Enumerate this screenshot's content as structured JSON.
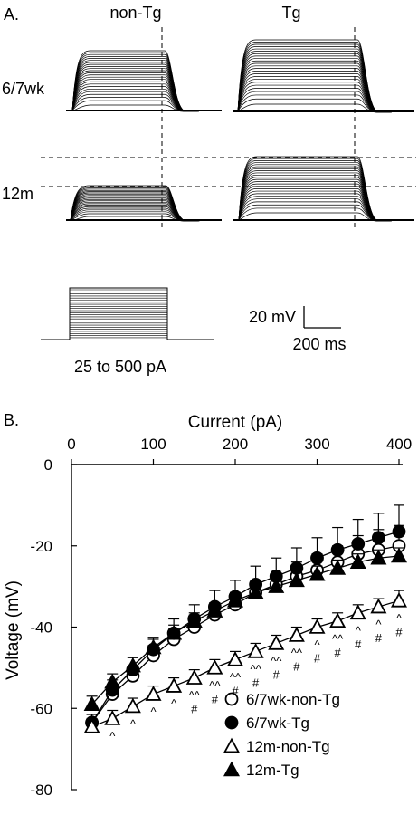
{
  "panel_a": {
    "label": "A.",
    "col_labels": [
      "non-Tg",
      "Tg"
    ],
    "row_labels": [
      "6/7wk",
      "12m"
    ],
    "stimulus_label": "25 to 500 pA",
    "scale_v": "20 mV",
    "scale_t": "200 ms"
  },
  "panel_b": {
    "label": "B."
  },
  "chart_data": {
    "type": "line",
    "xlabel": "Current (pA)",
    "ylabel": "Voltage (mV)",
    "xlim": [
      0,
      400
    ],
    "ylim": [
      -80,
      0
    ],
    "xticks": [
      0,
      100,
      200,
      300,
      400
    ],
    "yticks": [
      0,
      -20,
      -40,
      -60,
      -80
    ],
    "x_axis_position": "top",
    "legend_position": "bottom-right",
    "series": [
      {
        "name": "6/7wk-non-Tg",
        "marker": "circle-open",
        "x": [
          25,
          50,
          75,
          100,
          125,
          150,
          175,
          200,
          225,
          250,
          275,
          300,
          325,
          350,
          375,
          400
        ],
        "y": [
          -63.5,
          -56.5,
          -52,
          -47,
          -43,
          -40,
          -37,
          -34.5,
          -31.5,
          -29.5,
          -27.5,
          -26,
          -24,
          -22,
          -21,
          -20
        ],
        "err": [
          2,
          2,
          2,
          2.5,
          2.5,
          3,
          3,
          3,
          3,
          3.5,
          3.5,
          4,
          4,
          4.5,
          5,
          5
        ]
      },
      {
        "name": "6/7wk-Tg",
        "marker": "circle-filled",
        "x": [
          25,
          50,
          75,
          100,
          125,
          150,
          175,
          200,
          225,
          250,
          275,
          300,
          325,
          350,
          375,
          400
        ],
        "y": [
          -63.5,
          -55.5,
          -50.5,
          -45.5,
          -41.5,
          -38,
          -35,
          -32.5,
          -29.5,
          -27.5,
          -25.5,
          -23,
          -21,
          -19.5,
          -18,
          -16.5
        ],
        "err": [
          2,
          2.5,
          3,
          3,
          3.5,
          3.5,
          4,
          4,
          4.5,
          4.5,
          5,
          5,
          5.5,
          6,
          6,
          6.5
        ]
      },
      {
        "name": "12m-non-Tg",
        "marker": "triangle-open",
        "x": [
          25,
          50,
          75,
          100,
          125,
          150,
          175,
          200,
          225,
          250,
          275,
          300,
          325,
          350,
          375,
          400
        ],
        "y": [
          -64.5,
          -62.5,
          -59.5,
          -56.5,
          -54.5,
          -52.5,
          -50,
          -48,
          -46,
          -44,
          -42,
          -40,
          -38.5,
          -36.5,
          -35,
          -33.5
        ],
        "err": [
          2,
          2,
          2,
          2,
          2,
          2,
          2,
          2,
          2,
          2,
          2,
          2,
          2,
          2,
          2,
          2.5
        ]
      },
      {
        "name": "12m-Tg",
        "marker": "triangle-filled",
        "x": [
          25,
          50,
          75,
          100,
          125,
          150,
          175,
          200,
          225,
          250,
          275,
          300,
          325,
          350,
          375,
          400
        ],
        "y": [
          -59,
          -53.5,
          -49.5,
          -45,
          -41.5,
          -38.5,
          -36,
          -33.5,
          -31.5,
          -30,
          -28.5,
          -27,
          -25.5,
          -24,
          -23,
          -22.5
        ],
        "err": [
          2,
          2,
          2,
          2,
          2,
          2,
          2,
          2,
          2,
          2,
          2,
          2,
          2,
          2,
          2,
          2
        ]
      }
    ],
    "significance": [
      {
        "x": 50,
        "marks": [
          "^"
        ]
      },
      {
        "x": 75,
        "marks": [
          "^"
        ]
      },
      {
        "x": 100,
        "marks": [
          "^"
        ]
      },
      {
        "x": 125,
        "marks": [
          "^"
        ]
      },
      {
        "x": 150,
        "marks": [
          "^^",
          "#"
        ]
      },
      {
        "x": 175,
        "marks": [
          "^^",
          "#"
        ]
      },
      {
        "x": 200,
        "marks": [
          "^^",
          "#"
        ]
      },
      {
        "x": 225,
        "marks": [
          "^^",
          "#"
        ]
      },
      {
        "x": 250,
        "marks": [
          "^^",
          "#"
        ]
      },
      {
        "x": 275,
        "marks": [
          "^^",
          "#"
        ]
      },
      {
        "x": 300,
        "marks": [
          "^",
          "#"
        ]
      },
      {
        "x": 325,
        "marks": [
          "^^",
          "#"
        ]
      },
      {
        "x": 350,
        "marks": [
          "^",
          "#"
        ]
      },
      {
        "x": 375,
        "marks": [
          "^",
          "#"
        ]
      },
      {
        "x": 400,
        "marks": [
          "^",
          "#"
        ]
      }
    ]
  }
}
